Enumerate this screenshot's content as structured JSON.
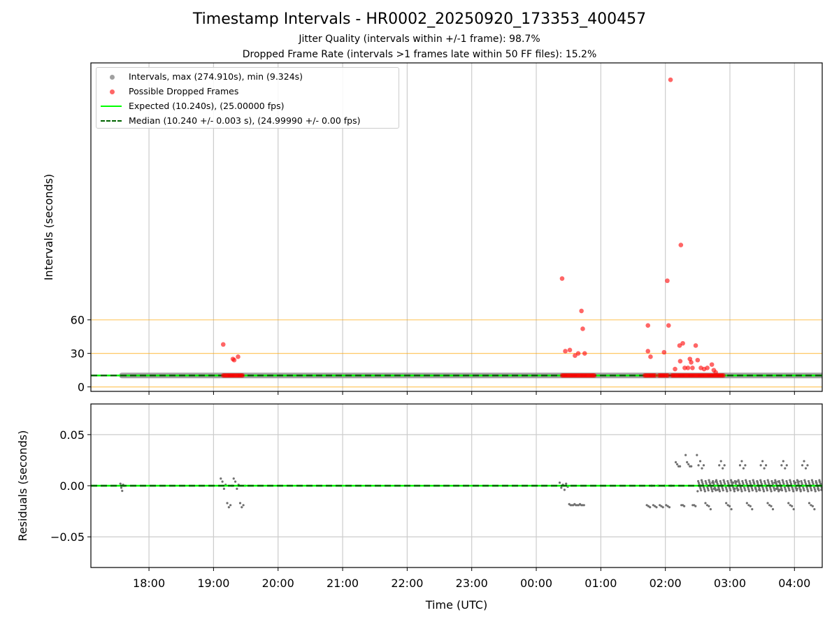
{
  "chart_data": [
    {
      "type": "scatter",
      "title": "Timestamp Intervals - HR0002_20250920_173353_400457",
      "subtitle_1": "Jitter Quality (intervals within +/-1 frame): 98.7%",
      "subtitle_2": "Dropped Frame Rate (intervals >1 frames late within 50 FF files): 15.2%",
      "ylabel": "Intervals (seconds)",
      "xlabel": "",
      "x_unit": "hours since 17:00 UTC",
      "xlim": [
        17.1,
        28.43
      ],
      "ylim": [
        -4,
        290
      ],
      "yticks": [
        0,
        30,
        60
      ],
      "ytick_labels": [
        "0",
        "30",
        "60"
      ],
      "reference_lines": [
        0,
        30,
        60
      ],
      "reference_line_color": "#ffa500",
      "x_gridlines": [
        18,
        19,
        20,
        21,
        22,
        23,
        24,
        25,
        26,
        27,
        28
      ],
      "legend": {
        "intervals_label": "Intervals, max (274.910s), min (9.324s)",
        "dropped_label": "Possible Dropped Frames",
        "expected_label": "Expected (10.240s), (25.00000 fps)",
        "median_label": "Median (10.240 +/- 0.003 s), (24.99990 +/- 0.00 fps)"
      },
      "series": [
        {
          "name": "Intervals",
          "color": "#808080",
          "x_start": 17.58,
          "x_end": 28.43,
          "y": 10.24
        },
        {
          "name": "Expected",
          "color": "#00ff00",
          "y": 10.24
        },
        {
          "name": "Median",
          "color": "#006400",
          "y": 10.24
        },
        {
          "name": "Possible Dropped Frames",
          "color": "#ff0000",
          "points": [
            [
              19.15,
              38
            ],
            [
              19.3,
              25
            ],
            [
              19.32,
              24
            ],
            [
              19.38,
              27
            ],
            [
              24.4,
              97
            ],
            [
              24.45,
              32
            ],
            [
              24.52,
              33
            ],
            [
              24.6,
              28
            ],
            [
              24.65,
              30
            ],
            [
              24.7,
              68
            ],
            [
              24.72,
              52
            ],
            [
              24.75,
              30
            ],
            [
              25.73,
              55
            ],
            [
              25.73,
              32
            ],
            [
              25.77,
              27
            ],
            [
              25.98,
              31
            ],
            [
              26.03,
              95
            ],
            [
              26.05,
              55
            ],
            [
              26.08,
              274.9
            ],
            [
              26.15,
              16
            ],
            [
              26.22,
              37
            ],
            [
              26.23,
              23
            ],
            [
              26.24,
              127
            ],
            [
              26.27,
              39
            ],
            [
              26.3,
              17
            ],
            [
              26.35,
              17
            ],
            [
              26.38,
              25
            ],
            [
              26.4,
              22
            ],
            [
              26.42,
              17
            ],
            [
              26.47,
              37
            ],
            [
              26.5,
              24
            ],
            [
              26.55,
              17
            ],
            [
              26.6,
              16
            ],
            [
              26.65,
              17
            ],
            [
              26.72,
              20
            ],
            [
              26.75,
              15
            ],
            [
              26.78,
              13
            ]
          ],
          "dense_ranges_at_10": [
            [
              19.15,
              19.45
            ],
            [
              24.4,
              24.9
            ],
            [
              25.68,
              25.85
            ],
            [
              25.9,
              26.05
            ],
            [
              26.1,
              26.9
            ]
          ]
        }
      ]
    },
    {
      "type": "scatter",
      "title": "",
      "xlabel": "Time (UTC)",
      "ylabel": "Residuals (seconds)",
      "xlim": [
        17.1,
        28.43
      ],
      "ylim": [
        -0.08,
        0.08
      ],
      "yticks": [
        -0.05,
        0.0,
        0.05
      ],
      "ytick_labels": [
        "−0.05",
        "0.00",
        "0.05"
      ],
      "xticks": [
        18,
        19,
        20,
        21,
        22,
        23,
        24,
        25,
        26,
        27,
        28
      ],
      "xtick_labels": [
        "18:00",
        "19:00",
        "20:00",
        "21:00",
        "22:00",
        "23:00",
        "00:00",
        "01:00",
        "02:00",
        "03:00",
        "04:00"
      ],
      "series": [
        {
          "name": "Residuals",
          "color": "#808080",
          "clusters": [
            {
              "x_range": [
                17.55,
                17.62
              ],
              "values": [
                0.002,
                -0.002,
                -0.005,
                0.001,
                0.0
              ]
            },
            {
              "x_range": [
                19.1,
                19.5
              ],
              "values": [
                0.007,
                0.004,
                -0.003,
                0.001,
                -0.017,
                -0.021,
                -0.019,
                0.0
              ]
            },
            {
              "x_range": [
                24.35,
                24.5
              ],
              "values": [
                0.003,
                -0.002,
                0.001,
                -0.004,
                0.002,
                -0.001
              ]
            },
            {
              "x_range": [
                24.5,
                24.75
              ],
              "values": [
                -0.018,
                -0.019,
                -0.019,
                -0.019
              ]
            },
            {
              "x_range": [
                25.7,
                26.1
              ],
              "values": [
                -0.019,
                -0.02,
                -0.021,
                0.0
              ]
            },
            {
              "x_range": [
                26.15,
                26.5
              ],
              "values": [
                0.023,
                0.021,
                0.019,
                0.019,
                -0.019,
                -0.019,
                -0.02,
                0.03
              ]
            },
            {
              "x_range": [
                26.5,
                28.43
              ],
              "values": [
                0.02,
                0.024,
                0.017,
                0.02,
                -0.017,
                -0.019,
                -0.02,
                -0.023,
                0.003,
                -0.003,
                0.004,
                -0.004
              ]
            }
          ]
        },
        {
          "name": "Expected",
          "color": "#00ff00",
          "y": 0.0
        },
        {
          "name": "Median",
          "color": "#006400",
          "y": 0.0
        }
      ]
    }
  ]
}
